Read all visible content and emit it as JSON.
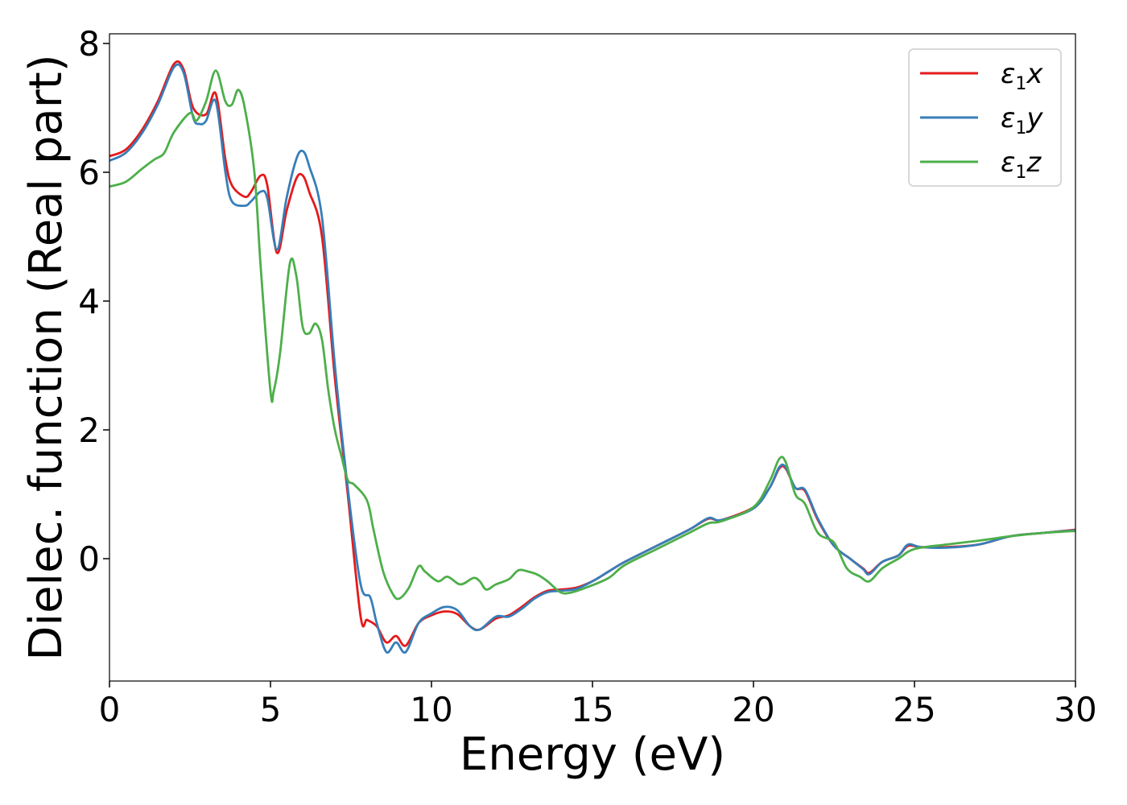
{
  "chart_data": {
    "type": "line",
    "title": "",
    "xlabel": "Energy (eV)",
    "ylabel": "Dielec. function (Real part)",
    "xlim": [
      0,
      30
    ],
    "ylim": [
      -1.9,
      8.15
    ],
    "xticks": [
      0,
      5,
      10,
      15,
      20,
      25,
      30
    ],
    "xtick_labels": [
      "0",
      "5",
      "10",
      "15",
      "20",
      "25",
      "30"
    ],
    "yticks": [
      0,
      2,
      4,
      6,
      8
    ],
    "ytick_labels": [
      "0",
      "2",
      "4",
      "6",
      "8"
    ],
    "grid": false,
    "legend_position": "top-right",
    "series": [
      {
        "name": "ε1x",
        "legend": {
          "symbol": "ε",
          "sub": "1",
          "var": "x"
        },
        "color": "#e41a1c",
        "x": [
          0,
          0.5,
          1,
          1.5,
          2,
          2.3,
          2.6,
          3,
          3.3,
          3.6,
          3.8,
          4.2,
          4.4,
          4.7,
          4.9,
          5.2,
          5.5,
          5.8,
          6,
          6.2,
          6.6,
          7,
          7.4,
          7.8,
          8,
          8.3,
          8.6,
          8.9,
          9.2,
          9.6,
          10,
          10.4,
          10.8,
          11.2,
          11.5,
          12,
          12.4,
          12.8,
          13.2,
          13.6,
          14,
          14.5,
          15,
          15.5,
          16,
          17,
          18,
          18.6,
          19,
          20,
          20.5,
          20.8,
          21,
          21.3,
          21.6,
          22,
          22.5,
          23,
          23.4,
          23.6,
          24,
          24.5,
          24.8,
          25.2,
          26,
          27,
          28,
          29,
          30
        ],
        "y": [
          6.25,
          6.35,
          6.65,
          7.1,
          7.68,
          7.6,
          7.0,
          6.9,
          7.22,
          6.2,
          5.8,
          5.62,
          5.7,
          5.95,
          5.8,
          4.75,
          5.4,
          5.9,
          5.95,
          5.7,
          5.0,
          2.8,
          1.0,
          -0.9,
          -0.95,
          -1.05,
          -1.3,
          -1.2,
          -1.35,
          -1.0,
          -0.88,
          -0.82,
          -0.86,
          -1.05,
          -1.1,
          -0.93,
          -0.88,
          -0.75,
          -0.6,
          -0.5,
          -0.48,
          -0.45,
          -0.35,
          -0.2,
          -0.05,
          0.2,
          0.45,
          0.62,
          0.6,
          0.8,
          1.1,
          1.4,
          1.4,
          1.1,
          1.05,
          0.6,
          0.2,
          0.0,
          -0.15,
          -0.22,
          -0.05,
          0.05,
          0.2,
          0.18,
          0.18,
          0.22,
          0.35,
          0.4,
          0.45
        ]
      },
      {
        "name": "ε1y",
        "legend": {
          "symbol": "ε",
          "sub": "1",
          "var": "y"
        },
        "color": "#377eb8",
        "x": [
          0,
          0.5,
          1,
          1.5,
          2,
          2.3,
          2.6,
          2.8,
          3,
          3.3,
          3.6,
          3.8,
          4.2,
          4.4,
          4.7,
          4.9,
          5.2,
          5.5,
          5.8,
          6,
          6.2,
          6.6,
          7,
          7.4,
          7.8,
          8.1,
          8.3,
          8.6,
          8.9,
          9.2,
          9.6,
          10,
          10.4,
          10.8,
          11.2,
          11.5,
          12,
          12.4,
          12.8,
          13.2,
          13.6,
          14,
          14.5,
          15,
          15.5,
          16,
          17,
          18,
          18.6,
          19,
          20,
          20.5,
          20.8,
          21,
          21.3,
          21.6,
          22,
          22.5,
          23,
          23.4,
          23.6,
          24,
          24.5,
          24.8,
          25.2,
          26,
          27,
          28,
          29,
          30
        ],
        "y": [
          6.18,
          6.3,
          6.6,
          7.05,
          7.63,
          7.55,
          6.85,
          6.75,
          6.8,
          7.1,
          6.0,
          5.55,
          5.48,
          5.55,
          5.7,
          5.6,
          4.8,
          5.6,
          6.2,
          6.33,
          6.1,
          5.3,
          3.0,
          1.1,
          -0.4,
          -0.6,
          -1.0,
          -1.45,
          -1.3,
          -1.45,
          -1.0,
          -0.85,
          -0.75,
          -0.8,
          -1.05,
          -1.1,
          -0.9,
          -0.9,
          -0.78,
          -0.62,
          -0.52,
          -0.5,
          -0.47,
          -0.35,
          -0.2,
          -0.05,
          0.2,
          0.45,
          0.63,
          0.6,
          0.78,
          1.1,
          1.42,
          1.42,
          1.1,
          1.07,
          0.62,
          0.2,
          0.0,
          -0.16,
          -0.24,
          -0.05,
          0.05,
          0.22,
          0.18,
          0.17,
          0.22,
          0.35,
          0.4,
          0.44
        ]
      },
      {
        "name": "ε1z",
        "legend": {
          "symbol": "ε",
          "sub": "1",
          "var": "z"
        },
        "color": "#4daf4a",
        "x": [
          0,
          0.5,
          1,
          1.4,
          1.7,
          2,
          2.5,
          2.7,
          3,
          3.3,
          3.6,
          3.8,
          4,
          4.2,
          4.5,
          4.7,
          5.0,
          5.1,
          5.3,
          5.6,
          5.8,
          6,
          6.2,
          6.4,
          6.6,
          6.8,
          7,
          7.2,
          7.4,
          7.6,
          8,
          8.2,
          8.5,
          8.8,
          9.0,
          9.3,
          9.6,
          9.8,
          10.2,
          10.5,
          10.9,
          11.3,
          11.5,
          11.7,
          12,
          12.4,
          12.7,
          13.0,
          13.3,
          13.6,
          14,
          14.3,
          14.8,
          15.5,
          16,
          17,
          18,
          18.6,
          19,
          20,
          20.5,
          20.8,
          21,
          21.3,
          21.6,
          22,
          22.5,
          22.9,
          23.3,
          23.6,
          24,
          24.5,
          25,
          26,
          27,
          28,
          29,
          30
        ],
        "y": [
          5.78,
          5.85,
          6.05,
          6.2,
          6.3,
          6.62,
          6.92,
          6.8,
          7.1,
          7.58,
          7.1,
          7.05,
          7.28,
          7.0,
          6.0,
          4.5,
          2.6,
          2.6,
          3.2,
          4.58,
          4.4,
          3.6,
          3.5,
          3.65,
          3.4,
          2.6,
          2.0,
          1.6,
          1.22,
          1.15,
          0.9,
          0.45,
          -0.2,
          -0.55,
          -0.62,
          -0.45,
          -0.12,
          -0.2,
          -0.35,
          -0.28,
          -0.4,
          -0.3,
          -0.35,
          -0.48,
          -0.4,
          -0.32,
          -0.18,
          -0.2,
          -0.25,
          -0.35,
          -0.52,
          -0.53,
          -0.45,
          -0.3,
          -0.1,
          0.15,
          0.4,
          0.55,
          0.58,
          0.8,
          1.2,
          1.55,
          1.5,
          1.0,
          0.85,
          0.4,
          0.25,
          -0.15,
          -0.28,
          -0.35,
          -0.15,
          0.0,
          0.15,
          0.22,
          0.28,
          0.35,
          0.4,
          0.43
        ]
      }
    ]
  }
}
